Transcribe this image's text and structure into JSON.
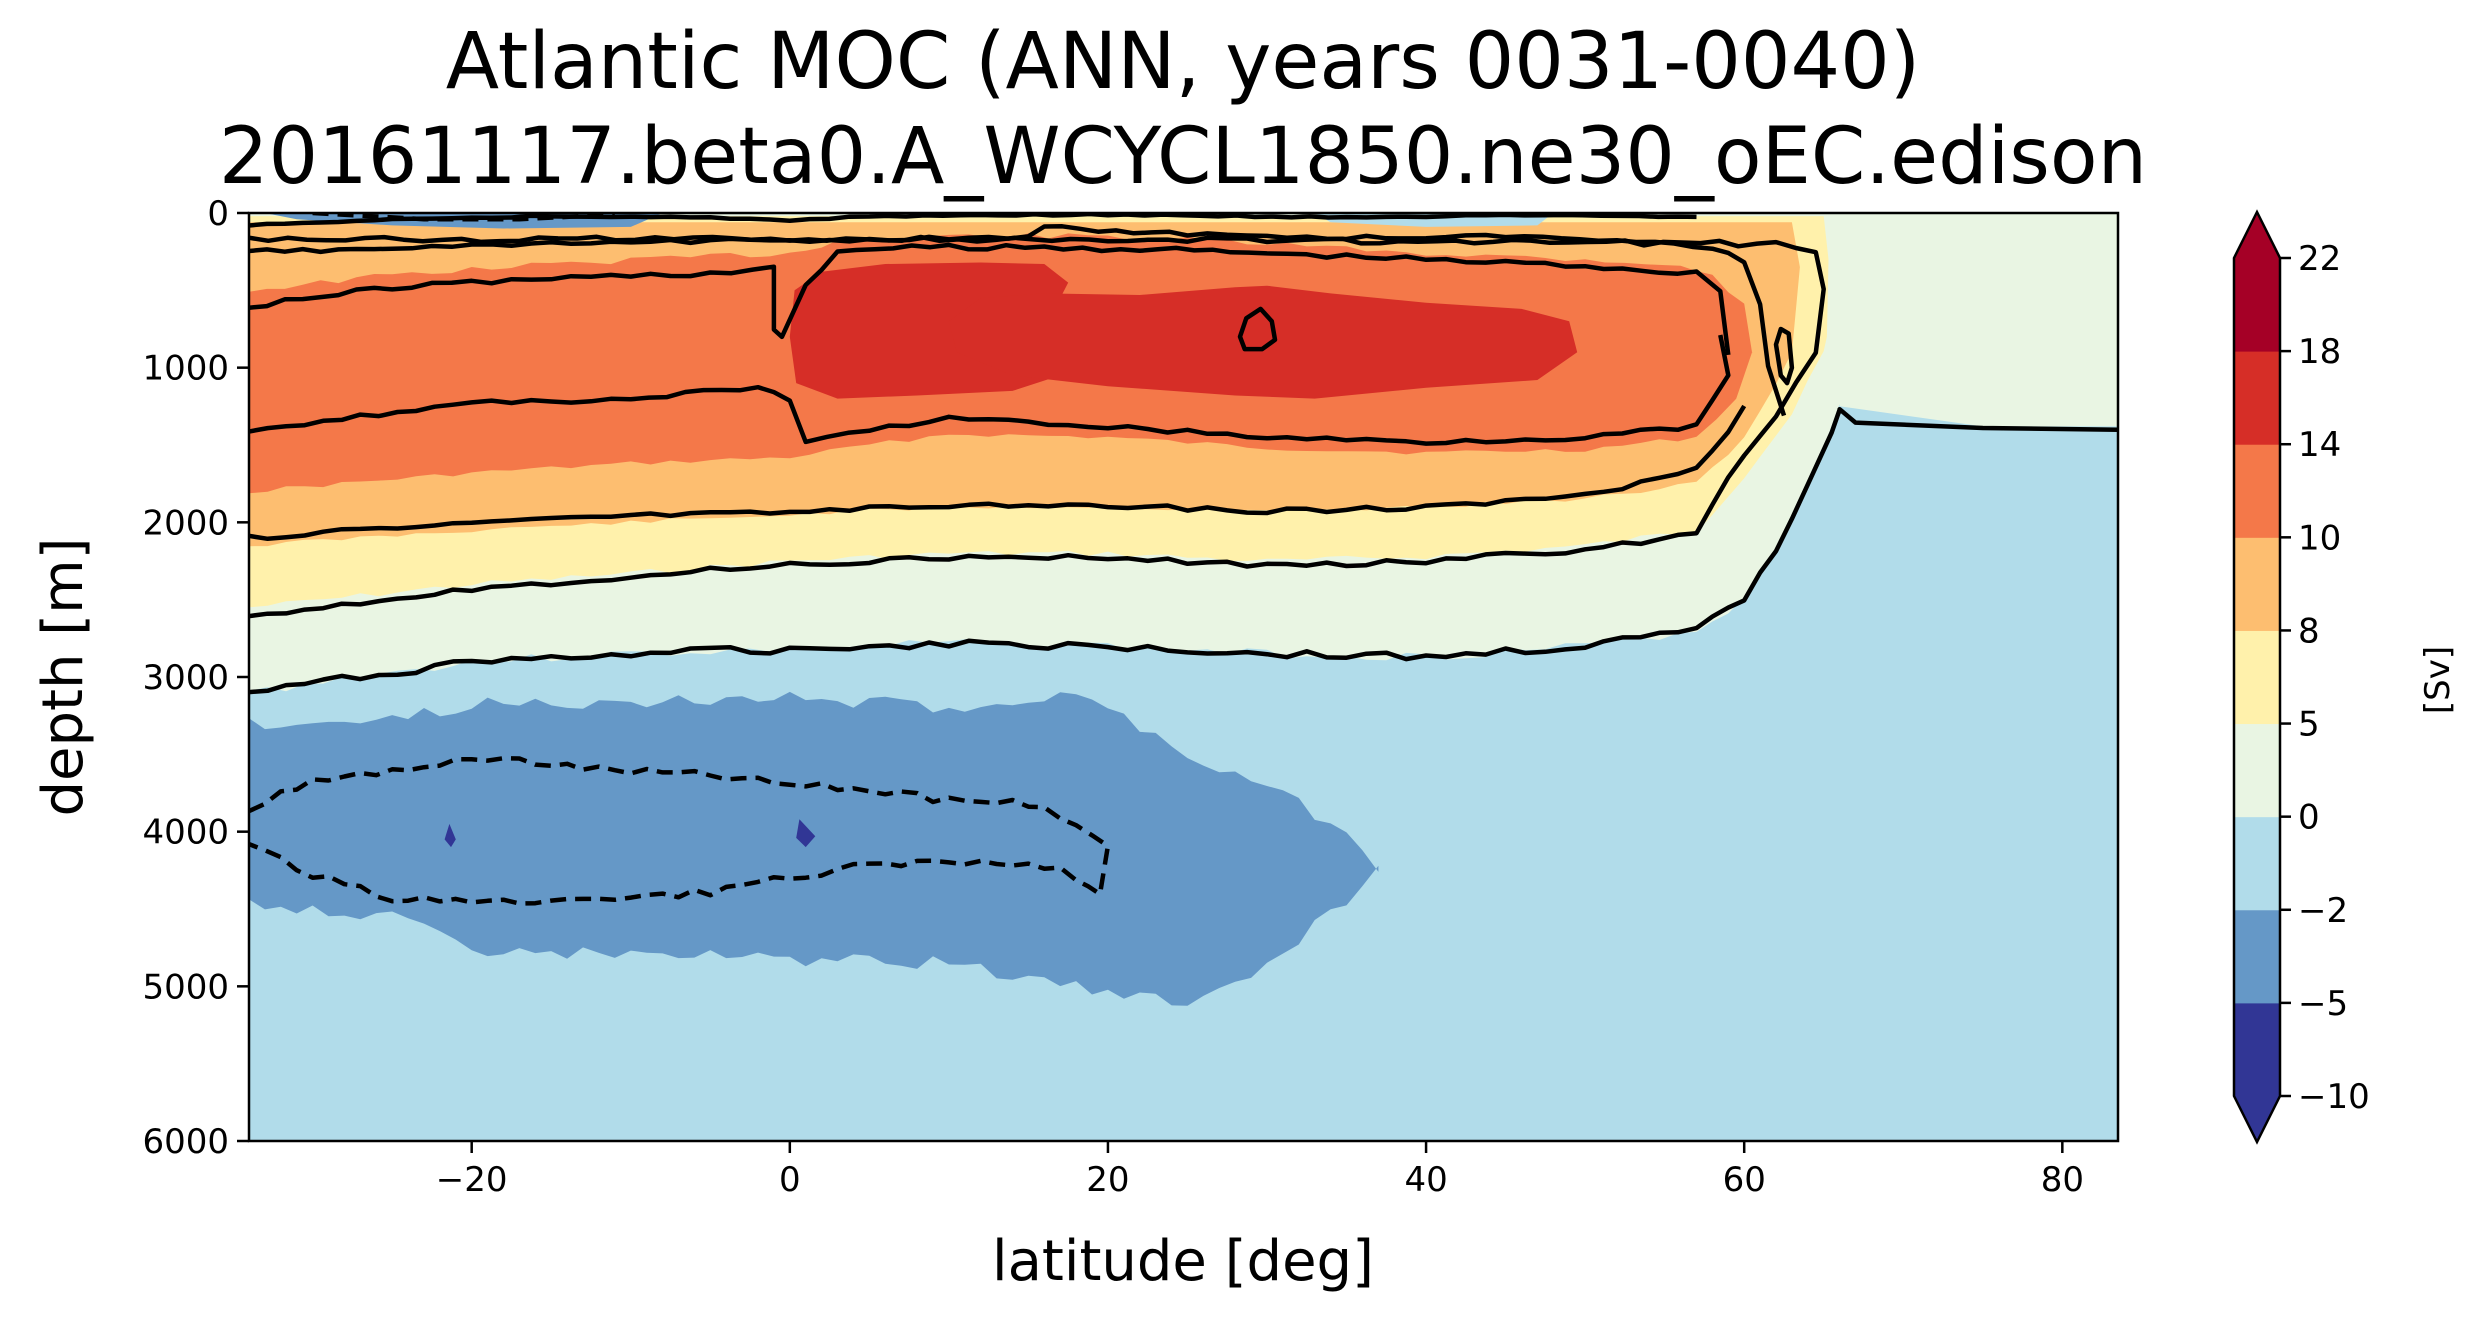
{
  "chart_data": {
    "type": "contourf",
    "title_line1": "Atlantic MOC (ANN, years 0031-0040)",
    "title_line2": "20161117.beta0.A_WCYCL1850.ne30_oEC.edison",
    "xlabel": "latitude [deg]",
    "ylabel": "depth [m]",
    "xlim": [
      -34,
      83.5
    ],
    "ylim": [
      6000,
      0
    ],
    "y_inverted": true,
    "xticks": [
      -20,
      0,
      20,
      40,
      60,
      80
    ],
    "xtick_labels": [
      "−20",
      "0",
      "20",
      "40",
      "60",
      "80"
    ],
    "yticks": [
      0,
      1000,
      2000,
      3000,
      4000,
      5000,
      6000
    ],
    "ytick_labels": [
      "0",
      "1000",
      "2000",
      "3000",
      "4000",
      "5000",
      "6000"
    ],
    "colorbar": {
      "label": "[Sv]",
      "levels": [
        -10,
        -5,
        -2,
        0,
        5,
        8,
        10,
        14,
        18,
        22
      ],
      "tick_labels": [
        "−10",
        "−5",
        "−2",
        "0",
        "5",
        "8",
        "10",
        "14",
        "18",
        "22"
      ],
      "colors": [
        "#313695",
        "#6598c7",
        "#b1dcea",
        "#e9f5e3",
        "#fff1ab",
        "#fdbe70",
        "#f47849",
        "#d62e27",
        "#a50026"
      ],
      "under_color": "#313695",
      "over_color": "#a50026",
      "extend": "both"
    },
    "fields": {
      "background_color": "#b1dcea",
      "cell_0_5_color": "#e9f5e3",
      "cell_5_8_color": "#fff1ab",
      "cell_8_10_color": "#fdbe70",
      "cell_10_14_color": "#f47849",
      "cell_14_18_color": "#d62e27",
      "deep_cell_color": "#6598c7",
      "deep_core_color": "#313695"
    },
    "features": {
      "upper_cell_max_sv": 15,
      "upper_cell_core_depth_m": 900,
      "upper_cell_core_lat_range": [
        0,
        48
      ],
      "upper_cell_north_boundary_lat": 66,
      "deep_cell_min_sv": -5,
      "deep_cell_depth_range_m": [
        3300,
        5100
      ],
      "deep_cell_lat_range": [
        -34,
        37
      ],
      "contour_line_color": "#000000",
      "negative_contours": "dashed"
    }
  }
}
